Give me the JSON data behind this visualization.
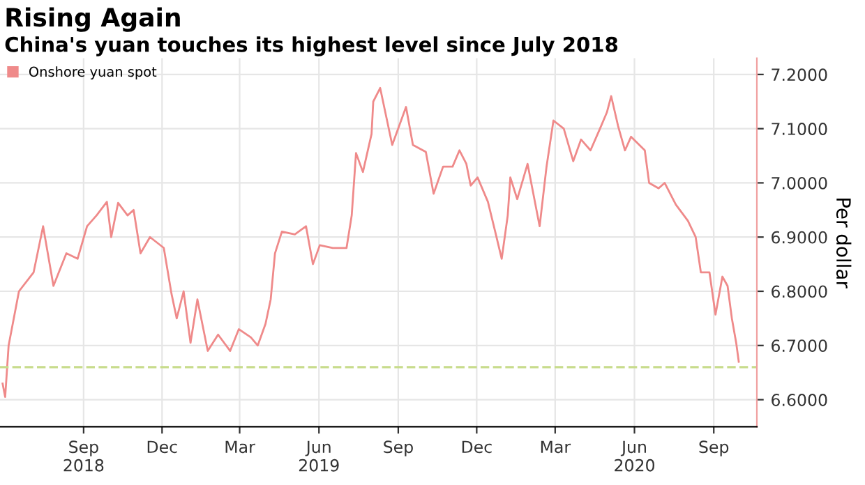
{
  "chart_data": {
    "type": "line",
    "title": "Rising Again",
    "subtitle": "China's yuan touches its highest level since July 2018",
    "ylabel": "Per dollar",
    "x": [
      "2018-05-30",
      "2018-06-02",
      "2018-06-06",
      "2018-06-18",
      "2018-07-05",
      "2018-07-16",
      "2018-07-28",
      "2018-08-12",
      "2018-08-25",
      "2018-09-05",
      "2018-09-16",
      "2018-09-28",
      "2018-10-03",
      "2018-10-11",
      "2018-10-22",
      "2018-10-29",
      "2018-11-06",
      "2018-11-17",
      "2018-12-03",
      "2018-12-12",
      "2018-12-18",
      "2018-12-26",
      "2019-01-03",
      "2019-01-11",
      "2019-01-23",
      "2019-02-04",
      "2019-02-18",
      "2019-02-28",
      "2019-03-14",
      "2019-03-22",
      "2019-03-31",
      "2019-04-06",
      "2019-04-11",
      "2019-04-19",
      "2019-05-04",
      "2019-05-17",
      "2019-05-25",
      "2019-06-02",
      "2019-06-17",
      "2019-07-03",
      "2019-07-09",
      "2019-07-14",
      "2019-07-22",
      "2019-08-01",
      "2019-08-03",
      "2019-08-11",
      "2019-08-25",
      "2019-09-10",
      "2019-09-18",
      "2019-10-03",
      "2019-10-12",
      "2019-10-23",
      "2019-11-03",
      "2019-11-11",
      "2019-11-19",
      "2019-11-24",
      "2019-12-02",
      "2019-12-14",
      "2019-12-22",
      "2019-12-30",
      "2020-01-06",
      "2020-01-09",
      "2020-01-17",
      "2020-01-29",
      "2020-02-12",
      "2020-02-20",
      "2020-02-28",
      "2020-03-11",
      "2020-03-22",
      "2020-03-31",
      "2020-04-11",
      "2020-04-22",
      "2020-04-30",
      "2020-05-05",
      "2020-05-13",
      "2020-05-21",
      "2020-05-28",
      "2020-06-13",
      "2020-06-18",
      "2020-06-29",
      "2020-07-06",
      "2020-07-19",
      "2020-08-02",
      "2020-08-11",
      "2020-08-17",
      "2020-08-27",
      "2020-09-03",
      "2020-09-11",
      "2020-09-17",
      "2020-09-22",
      "2020-09-27",
      "2020-09-30"
    ],
    "series": [
      {
        "name": "Onshore yuan spot",
        "color": "#ef8a8a",
        "values": [
          6.63,
          6.605,
          6.7,
          6.8,
          6.835,
          6.92,
          6.81,
          6.87,
          6.86,
          6.92,
          6.94,
          6.965,
          6.9,
          6.963,
          6.94,
          6.95,
          6.87,
          6.9,
          6.88,
          6.795,
          6.75,
          6.8,
          6.705,
          6.785,
          6.69,
          6.72,
          6.69,
          6.73,
          6.715,
          6.7,
          6.74,
          6.785,
          6.87,
          6.91,
          6.905,
          6.92,
          6.85,
          6.885,
          6.88,
          6.88,
          6.94,
          7.055,
          7.02,
          7.09,
          7.15,
          7.175,
          7.07,
          7.14,
          7.07,
          7.057,
          6.98,
          7.03,
          7.03,
          7.06,
          7.035,
          6.995,
          7.01,
          6.965,
          6.913,
          6.86,
          6.94,
          7.01,
          6.97,
          7.035,
          6.92,
          7.03,
          7.115,
          7.1,
          7.04,
          7.08,
          7.06,
          7.1,
          7.13,
          7.16,
          7.105,
          7.06,
          7.085,
          7.06,
          7.0,
          6.99,
          7.0,
          6.96,
          6.93,
          6.9,
          6.835,
          6.835,
          6.757,
          6.827,
          6.81,
          6.75,
          6.705,
          6.67
        ]
      }
    ],
    "xlim": [
      "2018-05-27",
      "2020-10-21"
    ],
    "xticks": [
      {
        "value": "2018-09-01",
        "label": "Sep\n2018"
      },
      {
        "value": "2018-12-01",
        "label": "Dec"
      },
      {
        "value": "2019-03-01",
        "label": "Mar"
      },
      {
        "value": "2019-06-01",
        "label": "Jun\n2019"
      },
      {
        "value": "2019-09-01",
        "label": "Sep"
      },
      {
        "value": "2019-12-01",
        "label": "Dec"
      },
      {
        "value": "2020-03-01",
        "label": "Mar"
      },
      {
        "value": "2020-06-01",
        "label": "Jun\n2020"
      },
      {
        "value": "2020-09-01",
        "label": "Sep"
      }
    ],
    "ylim": [
      6.55,
      7.23
    ],
    "yticks": [
      {
        "value": 6.6,
        "label": "6.6000"
      },
      {
        "value": 6.7,
        "label": "6.7000"
      },
      {
        "value": 6.8,
        "label": "6.8000"
      },
      {
        "value": 6.9,
        "label": "6.9000"
      },
      {
        "value": 7.0,
        "label": "7.0000"
      },
      {
        "value": 7.1,
        "label": "7.1000"
      },
      {
        "value": 7.2,
        "label": "7.2000"
      }
    ],
    "ref_lines": [
      {
        "axis": "y",
        "value": 6.66,
        "color": "#c8dc8c",
        "line_style": "dashed"
      }
    ],
    "grid": true,
    "legend": "top left",
    "marker": "none",
    "line_style": "solid"
  }
}
